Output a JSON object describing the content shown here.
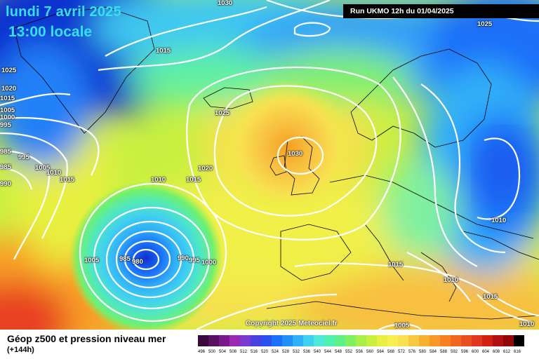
{
  "header": {
    "date_label": "lundi 7 avril 2025",
    "time_label": "13:00 locale",
    "run_label": "Run UKMO 12h du 01/04/2025"
  },
  "copyright": "Copyright 2025 Meteociel.fr",
  "footer": {
    "product_title": "Géop z500 et pression niveau mer",
    "lead_time": "(+144h)"
  },
  "colors": {
    "low_geop": "#1030d0",
    "high_geop": "#f2a81e",
    "isobar": "#ffffff",
    "title_text": "#35e0f0"
  },
  "isobar_labels": [
    {
      "text": "1030"
    },
    {
      "text": "1025"
    },
    {
      "text": "1015"
    },
    {
      "text": "1025"
    },
    {
      "text": "1020"
    },
    {
      "text": "1015"
    },
    {
      "text": "1005"
    },
    {
      "text": "1000"
    },
    {
      "text": "995"
    },
    {
      "text": "985"
    },
    {
      "text": "995"
    },
    {
      "text": "1005"
    },
    {
      "text": "1010"
    },
    {
      "text": "1015"
    },
    {
      "text": "985"
    },
    {
      "text": "990"
    },
    {
      "text": "1025"
    },
    {
      "text": "1030"
    },
    {
      "text": "1020"
    },
    {
      "text": "1015"
    },
    {
      "text": "1010"
    },
    {
      "text": "1005"
    },
    {
      "text": "985"
    },
    {
      "text": "980"
    },
    {
      "text": "990"
    },
    {
      "text": "995"
    },
    {
      "text": "1000"
    },
    {
      "text": "1015"
    },
    {
      "text": "1010"
    },
    {
      "text": "1010"
    },
    {
      "text": "1015"
    },
    {
      "text": "1005"
    },
    {
      "text": "1025"
    },
    {
      "text": "1010"
    }
  ],
  "scale": {
    "values": [
      "496",
      "500",
      "504",
      "508",
      "512",
      "516",
      "520",
      "524",
      "528",
      "532",
      "536",
      "540",
      "544",
      "548",
      "552",
      "556",
      "560",
      "564",
      "568",
      "572",
      "576",
      "580",
      "584",
      "588",
      "592",
      "596",
      "600",
      "604",
      "608",
      "612",
      "616"
    ],
    "colors": [
      "#3a0a3a",
      "#5a1060",
      "#7a1a8a",
      "#9a28b0",
      "#7a3ad0",
      "#4a40e0",
      "#2a50f0",
      "#1a70f8",
      "#2090f8",
      "#30b0f8",
      "#40d0f0",
      "#50e8d8",
      "#50f0b0",
      "#60f088",
      "#80f060",
      "#a8f048",
      "#c8f040",
      "#e8f040",
      "#f8f050",
      "#f8e050",
      "#f8c840",
      "#f8b030",
      "#f89828",
      "#f88020",
      "#f06820",
      "#e85020",
      "#e03820",
      "#d02010",
      "#b01010",
      "#900808",
      "#000000"
    ]
  }
}
